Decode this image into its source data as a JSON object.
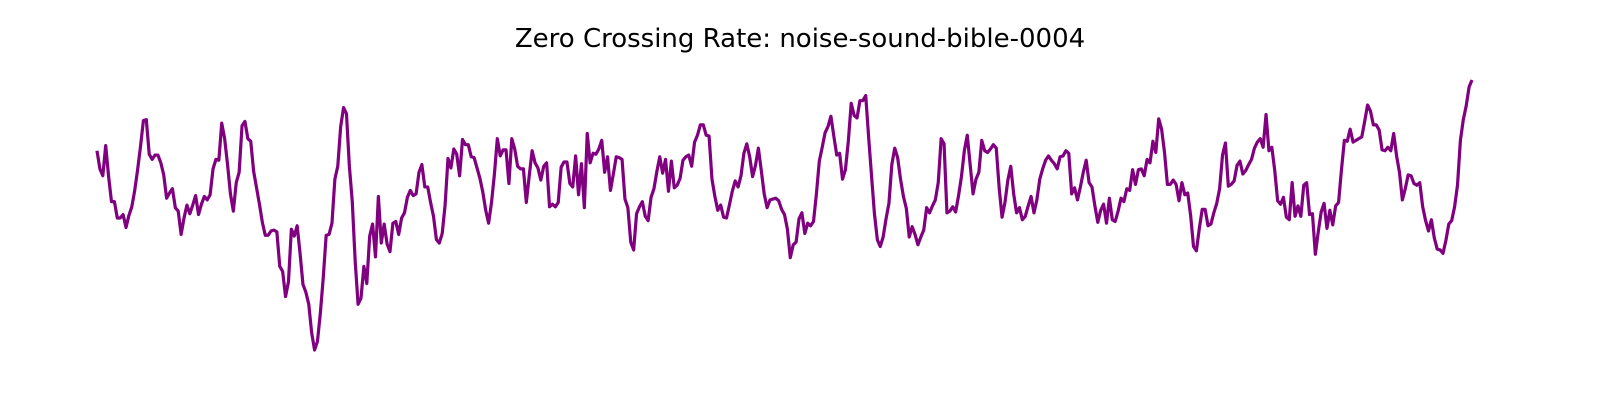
{
  "chart_data": {
    "type": "line",
    "title": "Zero Crossing Rate: noise-sound-bible-0004",
    "xlabel": "",
    "ylabel": "",
    "axes_visible": false,
    "grid": false,
    "legend": "none",
    "series": [
      {
        "color": "#800080",
        "values": [
          0.306,
          0.285,
          0.277,
          0.312,
          0.276,
          0.247,
          0.247,
          0.228,
          0.228,
          0.232,
          0.217,
          0.231,
          0.241,
          0.26,
          0.284,
          0.311,
          0.341,
          0.342,
          0.302,
          0.296,
          0.301,
          0.301,
          0.292,
          0.278,
          0.251,
          0.257,
          0.262,
          0.24,
          0.236,
          0.209,
          0.228,
          0.243,
          0.233,
          0.243,
          0.254,
          0.232,
          0.244,
          0.253,
          0.249,
          0.255,
          0.285,
          0.296,
          0.295,
          0.338,
          0.32,
          0.29,
          0.256,
          0.236,
          0.269,
          0.281,
          0.335,
          0.34,
          0.32,
          0.317,
          0.282,
          0.263,
          0.244,
          0.223,
          0.208,
          0.208,
          0.213,
          0.214,
          0.212,
          0.172,
          0.166,
          0.137,
          0.154,
          0.215,
          0.207,
          0.219,
          0.187,
          0.151,
          0.142,
          0.128,
          0.095,
          0.075,
          0.085,
          0.118,
          0.159,
          0.208,
          0.209,
          0.222,
          0.273,
          0.288,
          0.334,
          0.356,
          0.349,
          0.288,
          0.247,
          0.178,
          0.128,
          0.135,
          0.172,
          0.152,
          0.207,
          0.221,
          0.183,
          0.253,
          0.199,
          0.221,
          0.198,
          0.189,
          0.222,
          0.224,
          0.209,
          0.228,
          0.234,
          0.252,
          0.26,
          0.254,
          0.256,
          0.281,
          0.29,
          0.264,
          0.264,
          0.246,
          0.23,
          0.203,
          0.199,
          0.21,
          0.243,
          0.297,
          0.286,
          0.308,
          0.302,
          0.277,
          0.319,
          0.313,
          0.313,
          0.299,
          0.298,
          0.286,
          0.274,
          0.258,
          0.237,
          0.222,
          0.246,
          0.279,
          0.32,
          0.3,
          0.307,
          0.307,
          0.268,
          0.32,
          0.308,
          0.288,
          0.285,
          0.285,
          0.246,
          0.277,
          0.306,
          0.292,
          0.286,
          0.272,
          0.288,
          0.292,
          0.241,
          0.244,
          0.241,
          0.246,
          0.287,
          0.293,
          0.293,
          0.268,
          0.264,
          0.3,
          0.255,
          0.291,
          0.24,
          0.326,
          0.292,
          0.303,
          0.302,
          0.308,
          0.318,
          0.281,
          0.299,
          0.26,
          0.279,
          0.299,
          0.298,
          0.296,
          0.25,
          0.24,
          0.2,
          0.191,
          0.233,
          0.241,
          0.247,
          0.23,
          0.225,
          0.252,
          0.262,
          0.282,
          0.299,
          0.28,
          0.296,
          0.259,
          0.294,
          0.263,
          0.266,
          0.274,
          0.295,
          0.299,
          0.301,
          0.288,
          0.316,
          0.324,
          0.336,
          0.336,
          0.324,
          0.323,
          0.273,
          0.253,
          0.237,
          0.243,
          0.229,
          0.228,
          0.243,
          0.259,
          0.271,
          0.264,
          0.277,
          0.303,
          0.314,
          0.299,
          0.276,
          0.289,
          0.309,
          0.283,
          0.256,
          0.24,
          0.249,
          0.25,
          0.251,
          0.248,
          0.238,
          0.232,
          0.215,
          0.182,
          0.197,
          0.2,
          0.227,
          0.234,
          0.21,
          0.222,
          0.219,
          0.224,
          0.256,
          0.294,
          0.31,
          0.327,
          0.334,
          0.346,
          0.323,
          0.301,
          0.303,
          0.273,
          0.284,
          0.317,
          0.361,
          0.347,
          0.344,
          0.364,
          0.364,
          0.37,
          0.322,
          0.277,
          0.233,
          0.203,
          0.195,
          0.206,
          0.227,
          0.245,
          0.29,
          0.309,
          0.298,
          0.273,
          0.253,
          0.239,
          0.206,
          0.218,
          0.209,
          0.197,
          0.206,
          0.214,
          0.24,
          0.234,
          0.242,
          0.249,
          0.269,
          0.32,
          0.314,
          0.234,
          0.236,
          0.241,
          0.235,
          0.254,
          0.276,
          0.306,
          0.324,
          0.29,
          0.256,
          0.273,
          0.281,
          0.318,
          0.306,
          0.304,
          0.308,
          0.313,
          0.309,
          0.263,
          0.229,
          0.246,
          0.272,
          0.288,
          0.256,
          0.234,
          0.24,
          0.226,
          0.23,
          0.242,
          0.253,
          0.234,
          0.249,
          0.273,
          0.285,
          0.295,
          0.3,
          0.295,
          0.291,
          0.285,
          0.299,
          0.3,
          0.306,
          0.303,
          0.256,
          0.263,
          0.249,
          0.264,
          0.281,
          0.295,
          0.269,
          0.264,
          0.242,
          0.223,
          0.237,
          0.244,
          0.222,
          0.251,
          0.226,
          0.224,
          0.236,
          0.251,
          0.247,
          0.262,
          0.26,
          0.284,
          0.267,
          0.284,
          0.285,
          0.277,
          0.296,
          0.292,
          0.317,
          0.304,
          0.343,
          0.331,
          0.304,
          0.267,
          0.267,
          0.272,
          0.267,
          0.248,
          0.269,
          0.255,
          0.257,
          0.231,
          0.195,
          0.19,
          0.216,
          0.238,
          0.238,
          0.219,
          0.221,
          0.234,
          0.245,
          0.262,
          0.301,
          0.315,
          0.265,
          0.267,
          0.271,
          0.289,
          0.294,
          0.279,
          0.283,
          0.29,
          0.296,
          0.309,
          0.316,
          0.32,
          0.31,
          0.348,
          0.306,
          0.31,
          0.283,
          0.248,
          0.244,
          0.252,
          0.229,
          0.226,
          0.269,
          0.23,
          0.242,
          0.23,
          0.266,
          0.269,
          0.232,
          0.233,
          0.186,
          0.212,
          0.235,
          0.245,
          0.216,
          0.237,
          0.22,
          0.242,
          0.246,
          0.284,
          0.318,
          0.317,
          0.331,
          0.316,
          0.318,
          0.32,
          0.322,
          0.34,
          0.359,
          0.352,
          0.336,
          0.336,
          0.33,
          0.307,
          0.306,
          0.31,
          0.306,
          0.326,
          0.3,
          0.281,
          0.249,
          0.262,
          0.278,
          0.277,
          0.268,
          0.266,
          0.269,
          0.241,
          0.225,
          0.213,
          0.226,
          0.205,
          0.192,
          0.191,
          0.187,
          0.202,
          0.221,
          0.225,
          0.241,
          0.266,
          0.318,
          0.342,
          0.358,
          0.38,
          0.388
        ]
      }
    ]
  }
}
